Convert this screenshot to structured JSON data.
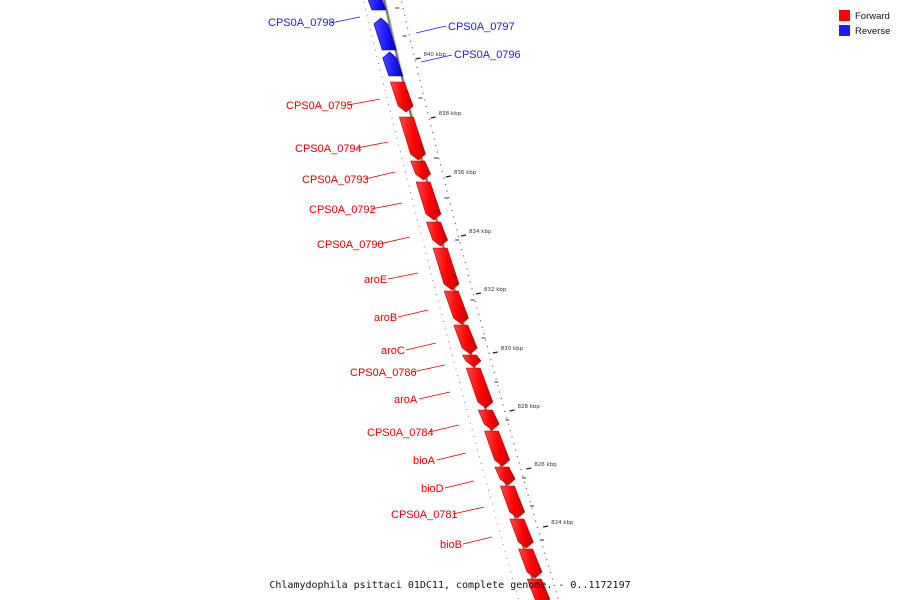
{
  "colors": {
    "forward": "#ff0000",
    "forward_dark": "#b30000",
    "reverse": "#1a1aff",
    "reverse_dark": "#0000a0",
    "backbone": "#7a7a7a",
    "scale_dots": "#666666",
    "label_forward": "#dd0000",
    "label_reverse": "#2020c8"
  },
  "legend": {
    "items": [
      {
        "label": "Forward",
        "color": "#ff0000"
      },
      {
        "label": "Reverse",
        "color": "#1a1aff"
      }
    ]
  },
  "genome_title": "Chlamydophila psittaci 01DC11, complete genome. - 0..1172197",
  "scale_marks": [
    "840 kbp",
    "838 kbp",
    "836 kbp",
    "834 kbp",
    "832 kbp",
    "830 kbp",
    "828 kbp",
    "826 kbp",
    "824 kbp"
  ],
  "genes": [
    {
      "name": "CPS0A_0798",
      "strand": "reverse"
    },
    {
      "name": "CPS0A_0797",
      "strand": "reverse"
    },
    {
      "name": "CPS0A_0796",
      "strand": "reverse"
    },
    {
      "name": "CPS0A_0795",
      "strand": "forward"
    },
    {
      "name": "CPS0A_0794",
      "strand": "forward"
    },
    {
      "name": "CPS0A_0793",
      "strand": "forward"
    },
    {
      "name": "CPS0A_0792",
      "strand": "forward"
    },
    {
      "name": "CPS0A_0790",
      "strand": "forward"
    },
    {
      "name": "aroE",
      "strand": "forward"
    },
    {
      "name": "aroB",
      "strand": "forward"
    },
    {
      "name": "aroC",
      "strand": "forward"
    },
    {
      "name": "CPS0A_0786",
      "strand": "forward"
    },
    {
      "name": "aroA",
      "strand": "forward"
    },
    {
      "name": "CPS0A_0784",
      "strand": "forward"
    },
    {
      "name": "bioA",
      "strand": "forward"
    },
    {
      "name": "bioD",
      "strand": "forward"
    },
    {
      "name": "CPS0A_0781",
      "strand": "forward"
    },
    {
      "name": "bioB",
      "strand": "forward"
    }
  ]
}
